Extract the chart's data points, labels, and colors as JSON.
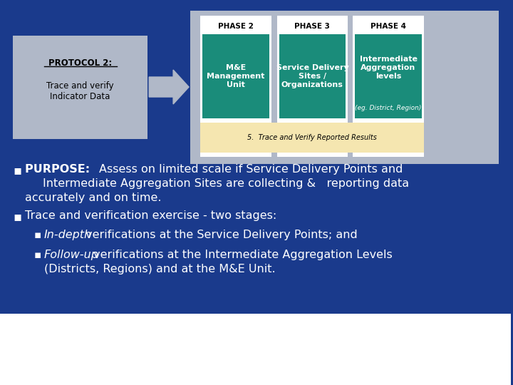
{
  "bg_color": "#1a3a8c",
  "footer_bg": "#ffffff",
  "diagram_bg": "#b0b8c8",
  "teal_color": "#1a8c7a",
  "cream_color": "#f5e6b0",
  "white": "#ffffff",
  "phase2_label": "PHASE 2",
  "phase3_label": "PHASE 3",
  "phase4_label": "PHASE 4",
  "phase2_text": "M&E\nManagement\nUnit",
  "phase3_text": "Service Delivery\nSites /\nOrganizations",
  "phase4_text": "Intermediate\nAggregation\nlevels",
  "phase4_sub": "(eg. District, Region)",
  "protocol_title": "PROTOCOL 2:",
  "protocol_sub": "Trace and verify\nIndicator Data",
  "bottom_box": "5.  Trace and Verify Reported Results",
  "sub_bullet1_italic": "In-depth",
  "sub_bullet1_rest": " verifications at the Service Delivery Points; and",
  "sub_bullet2_italic": "Follow-up",
  "sub_bullet2_rest": " verifications at the Intermediate Aggregation Levels"
}
